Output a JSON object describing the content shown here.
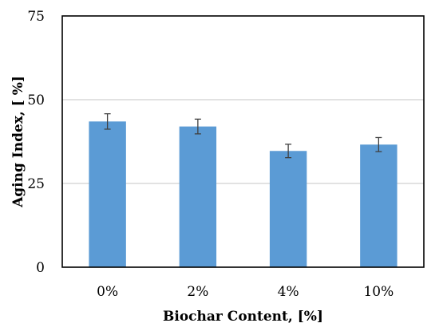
{
  "chart_data": {
    "type": "bar",
    "title": "",
    "xlabel": "Biochar Content, [%]",
    "ylabel": "Aging Index, [ %]",
    "categories": [
      "0%",
      "2%",
      "4%",
      "10%"
    ],
    "values": [
      43.5,
      42.0,
      34.7,
      36.6
    ],
    "errors": [
      2.3,
      2.2,
      2.0,
      2.1
    ],
    "ylim": [
      0,
      75
    ],
    "yticks": [
      0,
      25,
      50,
      75
    ],
    "grid": true,
    "colors": {
      "bar": "#5b9bd5",
      "gridline": "#d9d9d9",
      "errorbar": "#404040",
      "plot_border": "#000000"
    }
  }
}
